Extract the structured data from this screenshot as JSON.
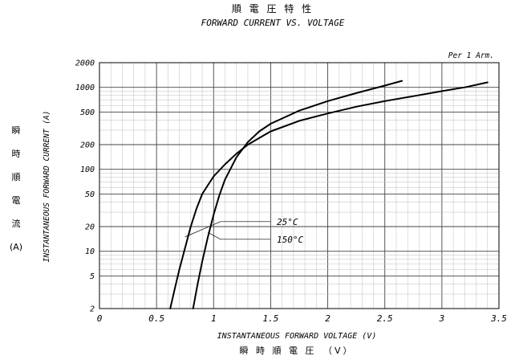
{
  "chart_data": {
    "type": "line",
    "title_jp": "順 電 圧 特 性",
    "title": "FORWARD CURRENT VS. VOLTAGE",
    "annotation": "Per 1 Arm.",
    "xlabel": "INSTANTANEOUS FORWARD VOLTAGE (V)",
    "xlabel_jp": "瞬 時 順 電 圧　（V）",
    "ylabel": "INSTANTANEOUS FORWARD CURRENT (A)",
    "ylabel_jp": [
      "瞬",
      "時",
      "順",
      "電",
      "流",
      "(A)"
    ],
    "xlim": [
      0,
      3.5
    ],
    "ylim": [
      2,
      2000
    ],
    "yscale": "log",
    "grid": true,
    "x_ticks": [
      {
        "v": 0,
        "label": "0"
      },
      {
        "v": 0.5,
        "label": "0.5"
      },
      {
        "v": 1,
        "label": "1"
      },
      {
        "v": 1.5,
        "label": "1.5"
      },
      {
        "v": 2,
        "label": "2"
      },
      {
        "v": 2.5,
        "label": "2.5"
      },
      {
        "v": 3,
        "label": "3"
      },
      {
        "v": 3.5,
        "label": "3.5"
      }
    ],
    "y_ticks": [
      {
        "v": 2,
        "label": "2"
      },
      {
        "v": 5,
        "label": "5"
      },
      {
        "v": 10,
        "label": "10"
      },
      {
        "v": 20,
        "label": "20"
      },
      {
        "v": 50,
        "label": "50"
      },
      {
        "v": 100,
        "label": "100"
      },
      {
        "v": 200,
        "label": "200"
      },
      {
        "v": 500,
        "label": "500"
      },
      {
        "v": 1000,
        "label": "1000"
      },
      {
        "v": 2000,
        "label": "2000"
      }
    ],
    "series": [
      {
        "name": "25°C",
        "x": [
          0.62,
          0.66,
          0.7,
          0.75,
          0.8,
          0.85,
          0.9,
          1.0,
          1.1,
          1.2,
          1.3,
          1.5,
          1.75,
          2.0,
          2.25,
          2.5,
          2.75,
          3.0,
          3.2,
          3.4
        ],
        "y": [
          2,
          3.5,
          6,
          11,
          20,
          33,
          50,
          82,
          115,
          155,
          200,
          290,
          390,
          480,
          580,
          680,
          780,
          900,
          1000,
          1150
        ]
      },
      {
        "name": "150°C",
        "x": [
          0.82,
          0.86,
          0.9,
          0.95,
          1.0,
          1.05,
          1.1,
          1.2,
          1.3,
          1.4,
          1.5,
          1.75,
          2.0,
          2.25,
          2.5,
          2.65
        ],
        "y": [
          2,
          4,
          7.5,
          15,
          28,
          48,
          75,
          140,
          215,
          290,
          360,
          520,
          680,
          850,
          1050,
          1200
        ]
      }
    ],
    "series_labels": [
      {
        "text": "25°C",
        "arrow_at": {
          "x": 0.75,
          "y": 15
        }
      },
      {
        "text": "150°C",
        "arrow_at": {
          "x": 0.95,
          "y": 17
        }
      }
    ]
  }
}
